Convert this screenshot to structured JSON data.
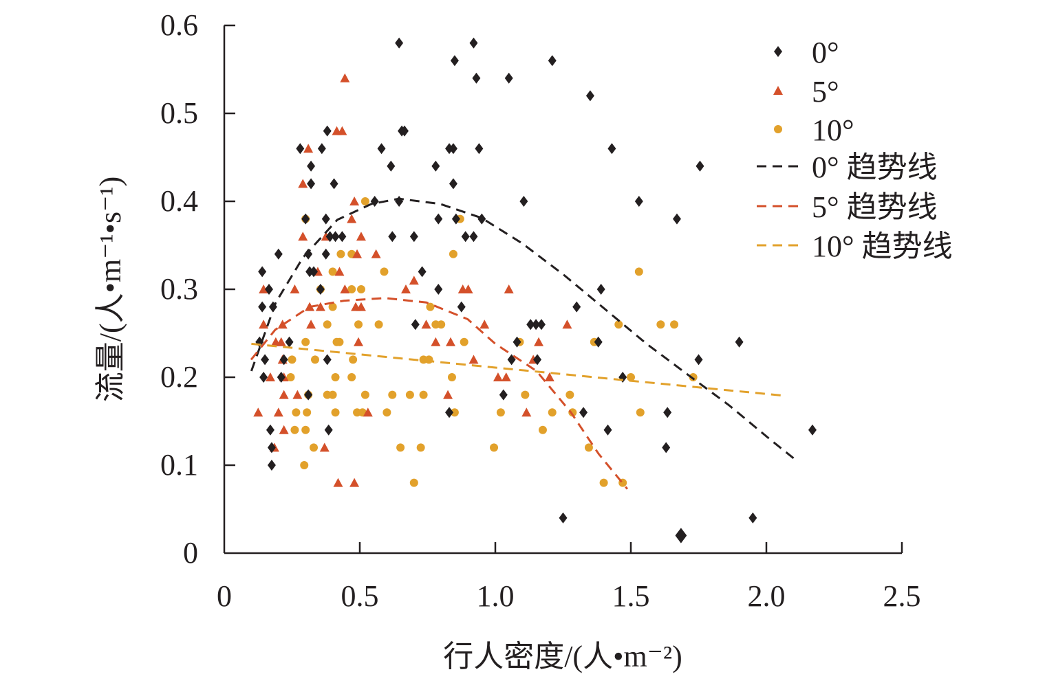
{
  "chart_data": {
    "type": "scatter",
    "title": "",
    "xlabel": "行人密度/(人•m⁻²)",
    "ylabel": "流量/(人•m⁻¹•s⁻¹)",
    "xlim": [
      0,
      2.5
    ],
    "ylim": [
      0,
      0.6
    ],
    "xticks": [
      "0",
      "0.5",
      "1.0",
      "1.5",
      "2.0",
      "2.5"
    ],
    "xtick_values": [
      0,
      0.5,
      1.0,
      1.5,
      2.0,
      2.5
    ],
    "yticks": [
      "0",
      "0.1",
      "0.2",
      "0.3",
      "0.4",
      "0.5",
      "0.6"
    ],
    "ytick_values": [
      0,
      0.1,
      0.2,
      0.3,
      0.4,
      0.5,
      0.6
    ],
    "grid": false,
    "legend_position": "top-right",
    "series": [
      {
        "name": "0°",
        "marker": "diamond",
        "color": "#231f20",
        "points": [
          [
            0.645,
            0.58
          ],
          [
            0.92,
            0.58
          ],
          [
            0.85,
            0.56
          ],
          [
            1.21,
            0.56
          ],
          [
            0.93,
            0.54
          ],
          [
            1.05,
            0.54
          ],
          [
            1.35,
            0.52
          ],
          [
            0.38,
            0.48
          ],
          [
            0.655,
            0.48
          ],
          [
            0.665,
            0.48
          ],
          [
            0.28,
            0.46
          ],
          [
            0.36,
            0.46
          ],
          [
            0.58,
            0.46
          ],
          [
            0.83,
            0.46
          ],
          [
            0.845,
            0.46
          ],
          [
            0.94,
            0.46
          ],
          [
            1.43,
            0.46
          ],
          [
            0.32,
            0.44
          ],
          [
            0.615,
            0.44
          ],
          [
            0.78,
            0.44
          ],
          [
            1.755,
            0.44
          ],
          [
            0.32,
            0.42
          ],
          [
            0.405,
            0.42
          ],
          [
            0.845,
            0.42
          ],
          [
            0.555,
            0.4
          ],
          [
            0.645,
            0.4
          ],
          [
            1.105,
            0.4
          ],
          [
            1.53,
            0.4
          ],
          [
            0.3,
            0.38
          ],
          [
            0.375,
            0.38
          ],
          [
            0.79,
            0.38
          ],
          [
            0.855,
            0.38
          ],
          [
            0.95,
            0.38
          ],
          [
            1.67,
            0.38
          ],
          [
            0.39,
            0.36
          ],
          [
            0.41,
            0.36
          ],
          [
            0.435,
            0.36
          ],
          [
            0.62,
            0.36
          ],
          [
            0.7,
            0.36
          ],
          [
            0.89,
            0.36
          ],
          [
            0.92,
            0.36
          ],
          [
            0.2,
            0.34
          ],
          [
            0.31,
            0.34
          ],
          [
            0.375,
            0.34
          ],
          [
            0.14,
            0.32
          ],
          [
            0.315,
            0.32
          ],
          [
            0.33,
            0.32
          ],
          [
            0.73,
            0.32
          ],
          [
            0.165,
            0.3
          ],
          [
            0.355,
            0.3
          ],
          [
            0.79,
            0.3
          ],
          [
            1.39,
            0.3
          ],
          [
            0.14,
            0.28
          ],
          [
            0.18,
            0.28
          ],
          [
            0.875,
            0.28
          ],
          [
            1.3,
            0.28
          ],
          [
            0.705,
            0.26
          ],
          [
            1.13,
            0.26
          ],
          [
            1.15,
            0.26
          ],
          [
            1.17,
            0.26
          ],
          [
            0.13,
            0.24
          ],
          [
            0.24,
            0.24
          ],
          [
            1.08,
            0.24
          ],
          [
            1.38,
            0.24
          ],
          [
            1.9,
            0.24
          ],
          [
            0.15,
            0.22
          ],
          [
            0.22,
            0.22
          ],
          [
            0.38,
            0.22
          ],
          [
            1.06,
            0.22
          ],
          [
            1.155,
            0.22
          ],
          [
            1.75,
            0.22
          ],
          [
            0.145,
            0.2
          ],
          [
            0.21,
            0.2
          ],
          [
            1.47,
            0.2
          ],
          [
            0.31,
            0.18
          ],
          [
            1.03,
            0.18
          ],
          [
            0.83,
            0.16
          ],
          [
            1.325,
            0.16
          ],
          [
            1.635,
            0.16
          ],
          [
            0.17,
            0.14
          ],
          [
            0.385,
            0.14
          ],
          [
            1.415,
            0.14
          ],
          [
            2.17,
            0.14
          ],
          [
            0.175,
            0.12
          ],
          [
            1.63,
            0.12
          ],
          [
            0.175,
            0.1
          ],
          [
            1.25,
            0.04
          ],
          [
            1.95,
            0.04
          ],
          [
            1.685,
            0.02
          ]
        ]
      },
      {
        "name": "5°",
        "marker": "triangle",
        "color": "#d4502a",
        "points": [
          [
            0.445,
            0.54
          ],
          [
            0.415,
            0.48
          ],
          [
            0.435,
            0.48
          ],
          [
            0.31,
            0.46
          ],
          [
            0.29,
            0.42
          ],
          [
            0.48,
            0.4
          ],
          [
            0.47,
            0.38
          ],
          [
            0.29,
            0.36
          ],
          [
            0.375,
            0.36
          ],
          [
            0.505,
            0.36
          ],
          [
            0.49,
            0.34
          ],
          [
            0.56,
            0.34
          ],
          [
            0.345,
            0.32
          ],
          [
            0.425,
            0.32
          ],
          [
            0.7,
            0.31
          ],
          [
            0.145,
            0.3
          ],
          [
            0.26,
            0.3
          ],
          [
            0.445,
            0.3
          ],
          [
            0.67,
            0.3
          ],
          [
            0.88,
            0.3
          ],
          [
            0.9,
            0.3
          ],
          [
            1.05,
            0.3
          ],
          [
            0.315,
            0.28
          ],
          [
            0.355,
            0.28
          ],
          [
            0.485,
            0.28
          ],
          [
            0.505,
            0.28
          ],
          [
            0.145,
            0.26
          ],
          [
            0.215,
            0.26
          ],
          [
            0.32,
            0.26
          ],
          [
            0.745,
            0.26
          ],
          [
            0.96,
            0.26
          ],
          [
            1.265,
            0.26
          ],
          [
            0.19,
            0.24
          ],
          [
            0.21,
            0.24
          ],
          [
            0.495,
            0.24
          ],
          [
            0.78,
            0.24
          ],
          [
            0.835,
            0.24
          ],
          [
            1.16,
            0.24
          ],
          [
            0.215,
            0.22
          ],
          [
            0.92,
            0.22
          ],
          [
            1.14,
            0.22
          ],
          [
            0.17,
            0.2
          ],
          [
            0.22,
            0.2
          ],
          [
            1.01,
            0.2
          ],
          [
            1.04,
            0.2
          ],
          [
            1.2,
            0.2
          ],
          [
            0.22,
            0.18
          ],
          [
            0.27,
            0.18
          ],
          [
            0.825,
            0.18
          ],
          [
            0.125,
            0.16
          ],
          [
            0.2,
            0.16
          ],
          [
            0.53,
            0.16
          ],
          [
            1.115,
            0.16
          ],
          [
            0.22,
            0.14
          ],
          [
            0.185,
            0.12
          ],
          [
            0.37,
            0.12
          ],
          [
            0.42,
            0.08
          ],
          [
            0.48,
            0.08
          ]
        ]
      },
      {
        "name": "10°",
        "marker": "circle",
        "color": "#e2a12b",
        "points": [
          [
            0.52,
            0.4
          ],
          [
            0.3,
            0.38
          ],
          [
            0.87,
            0.38
          ],
          [
            0.43,
            0.34
          ],
          [
            0.47,
            0.34
          ],
          [
            0.845,
            0.34
          ],
          [
            0.4,
            0.32
          ],
          [
            0.59,
            0.32
          ],
          [
            1.53,
            0.32
          ],
          [
            0.355,
            0.3
          ],
          [
            0.47,
            0.3
          ],
          [
            0.505,
            0.3
          ],
          [
            0.4,
            0.28
          ],
          [
            0.76,
            0.28
          ],
          [
            0.38,
            0.26
          ],
          [
            0.495,
            0.26
          ],
          [
            0.57,
            0.26
          ],
          [
            0.78,
            0.26
          ],
          [
            0.8,
            0.26
          ],
          [
            1.455,
            0.26
          ],
          [
            1.61,
            0.26
          ],
          [
            1.66,
            0.26
          ],
          [
            0.3,
            0.24
          ],
          [
            0.415,
            0.24
          ],
          [
            0.425,
            0.24
          ],
          [
            0.885,
            0.24
          ],
          [
            1.09,
            0.24
          ],
          [
            1.365,
            0.24
          ],
          [
            0.25,
            0.22
          ],
          [
            0.335,
            0.22
          ],
          [
            0.475,
            0.22
          ],
          [
            0.735,
            0.22
          ],
          [
            0.755,
            0.22
          ],
          [
            0.245,
            0.2
          ],
          [
            0.41,
            0.2
          ],
          [
            0.47,
            0.2
          ],
          [
            0.84,
            0.2
          ],
          [
            1.5,
            0.2
          ],
          [
            1.73,
            0.2
          ],
          [
            0.31,
            0.18
          ],
          [
            0.38,
            0.18
          ],
          [
            0.4,
            0.18
          ],
          [
            0.52,
            0.18
          ],
          [
            0.62,
            0.18
          ],
          [
            0.685,
            0.18
          ],
          [
            0.735,
            0.18
          ],
          [
            1.11,
            0.18
          ],
          [
            1.275,
            0.18
          ],
          [
            0.265,
            0.16
          ],
          [
            0.305,
            0.16
          ],
          [
            0.41,
            0.16
          ],
          [
            0.49,
            0.16
          ],
          [
            0.51,
            0.16
          ],
          [
            0.6,
            0.16
          ],
          [
            0.85,
            0.16
          ],
          [
            1.02,
            0.16
          ],
          [
            1.21,
            0.16
          ],
          [
            1.285,
            0.16
          ],
          [
            1.535,
            0.16
          ],
          [
            0.26,
            0.14
          ],
          [
            0.3,
            0.14
          ],
          [
            1.175,
            0.14
          ],
          [
            0.33,
            0.12
          ],
          [
            0.65,
            0.12
          ],
          [
            0.725,
            0.12
          ],
          [
            0.995,
            0.12
          ],
          [
            1.345,
            0.12
          ],
          [
            0.295,
            0.1
          ],
          [
            0.7,
            0.08
          ],
          [
            1.4,
            0.08
          ],
          [
            1.47,
            0.08
          ]
        ]
      }
    ],
    "trendlines": [
      {
        "name": "0° 趋势线",
        "color": "#231f20",
        "points": [
          [
            0.1,
            0.207
          ],
          [
            0.19,
            0.285
          ],
          [
            0.29,
            0.336
          ],
          [
            0.417,
            0.379
          ],
          [
            0.543,
            0.397
          ],
          [
            0.645,
            0.403
          ],
          [
            0.797,
            0.397
          ],
          [
            0.95,
            0.381
          ],
          [
            1.1,
            0.352
          ],
          [
            1.254,
            0.316
          ],
          [
            1.406,
            0.277
          ],
          [
            1.558,
            0.238
          ],
          [
            1.71,
            0.203
          ],
          [
            1.863,
            0.168
          ],
          [
            2.015,
            0.129
          ],
          [
            2.104,
            0.107
          ]
        ]
      },
      {
        "name": "5° 趋势线",
        "color": "#d4502a",
        "points": [
          [
            0.099,
            0.22
          ],
          [
            0.188,
            0.254
          ],
          [
            0.315,
            0.28
          ],
          [
            0.442,
            0.287
          ],
          [
            0.594,
            0.29
          ],
          [
            0.746,
            0.285
          ],
          [
            0.898,
            0.266
          ],
          [
            1.0,
            0.238
          ],
          [
            1.152,
            0.207
          ],
          [
            1.279,
            0.16
          ],
          [
            1.381,
            0.113
          ],
          [
            1.487,
            0.073
          ]
        ]
      },
      {
        "name": "10° 趋势线",
        "color": "#e2a12b",
        "points": [
          [
            0.1,
            0.238
          ],
          [
            2.066,
            0.179
          ]
        ]
      }
    ]
  }
}
